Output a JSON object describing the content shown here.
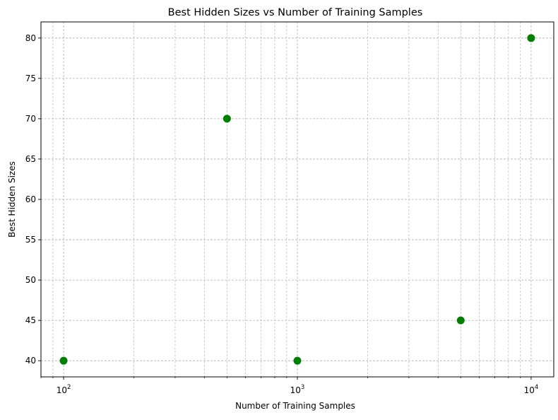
{
  "chart_data": {
    "type": "scatter",
    "title": "Best Hidden Sizes vs Number of Training Samples",
    "xlabel": "Number of Training Samples",
    "ylabel": "Best Hidden Sizes",
    "x_scale": "log",
    "xlim": [
      80,
      12500
    ],
    "ylim": [
      38,
      82
    ],
    "x_ticks": [
      {
        "value": 100,
        "base": "10",
        "exp": "2"
      },
      {
        "value": 1000,
        "base": "10",
        "exp": "3"
      },
      {
        "value": 10000,
        "base": "10",
        "exp": "4"
      }
    ],
    "y_ticks": [
      40,
      45,
      50,
      55,
      60,
      65,
      70,
      75,
      80
    ],
    "grid": "major and minor, dashed",
    "marker_color": "#008000",
    "points": [
      {
        "x": 100,
        "y": 40
      },
      {
        "x": 500,
        "y": 70
      },
      {
        "x": 1000,
        "y": 40
      },
      {
        "x": 5000,
        "y": 45
      },
      {
        "x": 10000,
        "y": 80
      }
    ]
  }
}
